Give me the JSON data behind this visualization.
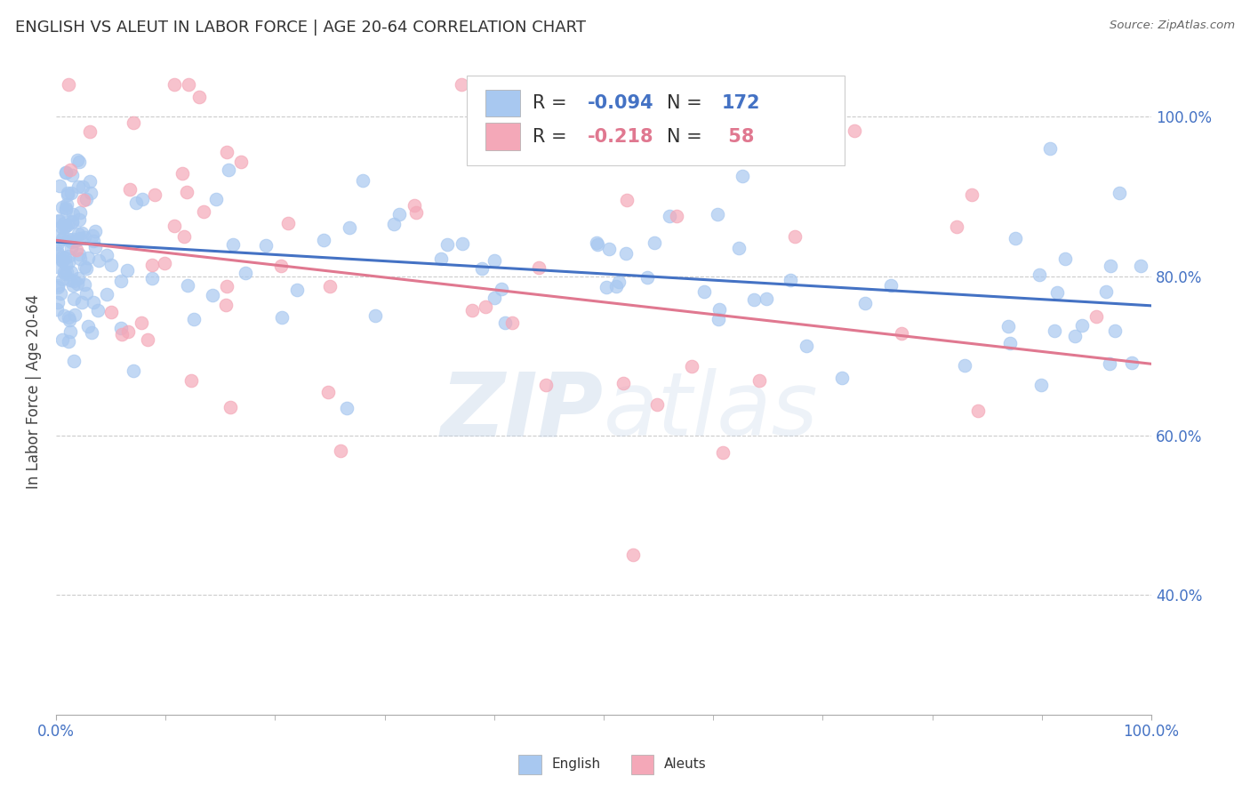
{
  "title": "ENGLISH VS ALEUT IN LABOR FORCE | AGE 20-64 CORRELATION CHART",
  "ylabel": "In Labor Force | Age 20-64",
  "source": "Source: ZipAtlas.com",
  "watermark_zip": "ZIP",
  "watermark_atlas": "atlas",
  "english_R": -0.094,
  "english_N": 172,
  "aleut_R": -0.218,
  "aleut_N": 58,
  "english_color": "#a8c8f0",
  "aleut_color": "#f4a8b8",
  "english_line_color": "#4472c4",
  "aleut_line_color": "#e07890",
  "xlim": [
    0.0,
    1.0
  ],
  "ylim": [
    0.25,
    1.06
  ],
  "ytick_vals": [
    0.4,
    0.6,
    0.8,
    1.0
  ],
  "background_color": "#ffffff",
  "grid_color": "#cccccc",
  "title_color": "#333333",
  "label_color": "#4472c4",
  "seed": 7
}
